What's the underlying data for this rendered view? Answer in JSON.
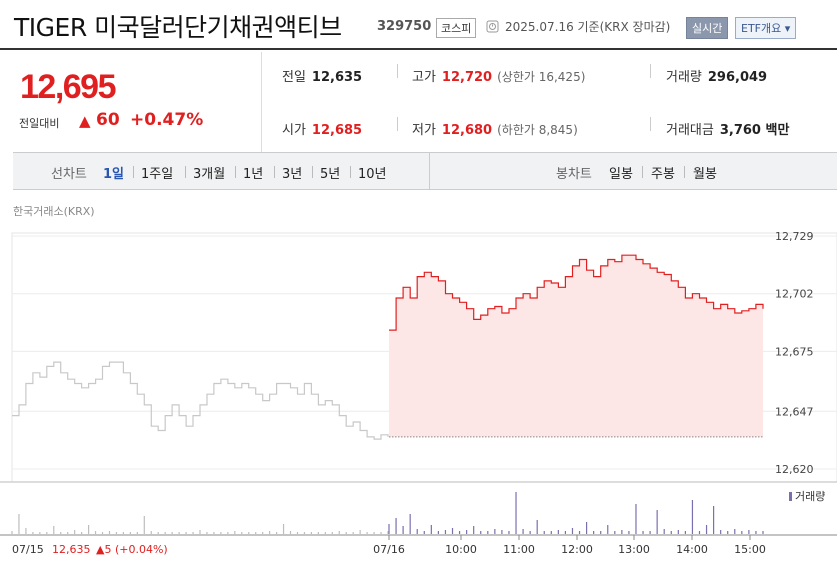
{
  "header": {
    "name": "TIGER 미국달러단기채권액티브",
    "code": "329750",
    "market": "코스피",
    "datetime": "2025.07.16 기준(KRX 장마감)",
    "realtime_button": "실시간",
    "etf_button": "ETF개요 ▾"
  },
  "price": {
    "current": "12,695",
    "change_label": "전일대비",
    "change_arrow": "▲",
    "change": "60",
    "change_pct": "+0.47%"
  },
  "stats": {
    "prev_close_label": "전일",
    "prev_close": "12,635",
    "high_label": "고가",
    "high": "12,720",
    "upper_limit": "(상한가 16,425)",
    "volume_label": "거래량",
    "volume": "296,049",
    "open_label": "시가",
    "open": "12,685",
    "low_label": "저가",
    "low": "12,680",
    "lower_limit": "(하한가 8,845)",
    "value_label": "거래대금",
    "value": "3,760 백만"
  },
  "toolbar": {
    "line_label": "선차트",
    "line_periods": [
      "1일",
      "1주일",
      "3개월",
      "1년",
      "3년",
      "5년",
      "10년"
    ],
    "candle_label": "봉차트",
    "candle_periods": [
      "일봉",
      "주봉",
      "월봉"
    ]
  },
  "source": "한국거래소(KRX)",
  "colors": {
    "up": "#e02020",
    "fill": "#fde6e6",
    "prev": "#c8c8c8",
    "volume": "#7b6fb0"
  },
  "chart_data": {
    "type": "line",
    "y_ticks": [
      "12,729",
      "12,702",
      "12,675",
      "12,647",
      "12,620"
    ],
    "ylim": [
      12620,
      12729
    ],
    "x_ticks": [
      "07/15",
      "07/16",
      "10:00",
      "11:00",
      "12:00",
      "13:00",
      "14:00",
      "15:00"
    ],
    "prev_day_label": "07/15",
    "prev_day_close": "12,635",
    "prev_day_change": "▲5 (+0.04%)",
    "volume_legend": "거래량",
    "series": [
      {
        "day": "07/15",
        "values": [
          12645,
          12650,
          12660,
          12665,
          12663,
          12668,
          12670,
          12665,
          12662,
          12660,
          12658,
          12660,
          12662,
          12668,
          12670,
          12670,
          12665,
          12660,
          12655,
          12650,
          12640,
          12638,
          12645,
          12650,
          12645,
          12640,
          12645,
          12650,
          12655,
          12660,
          12662,
          12660,
          12658,
          12660,
          12658,
          12655,
          12652,
          12655,
          12660,
          12660,
          12658,
          12655,
          12660,
          12655,
          12650,
          12652,
          12650,
          12645,
          12640,
          12642,
          12638,
          12635,
          12634,
          12636,
          12635
        ]
      },
      {
        "day": "07/16",
        "values": [
          12685,
          12700,
          12705,
          12700,
          12710,
          12712,
          12710,
          12708,
          12702,
          12700,
          12698,
          12695,
          12690,
          12692,
          12695,
          12696,
          12693,
          12695,
          12700,
          12702,
          12700,
          12705,
          12708,
          12707,
          12705,
          12710,
          12715,
          12718,
          12713,
          12710,
          12715,
          12718,
          12717,
          12720,
          12720,
          12718,
          12716,
          12714,
          12712,
          12711,
          12708,
          12705,
          12700,
          12702,
          12700,
          12698,
          12695,
          12697,
          12695,
          12693,
          12694,
          12695,
          12697,
          12695
        ]
      }
    ],
    "volume": [
      {
        "day": "07/15",
        "values": [
          3,
          20,
          6,
          2,
          2,
          2,
          8,
          2,
          2,
          4,
          2,
          9,
          3,
          2,
          3,
          2,
          2,
          2,
          2,
          18,
          3,
          2,
          2,
          2,
          2,
          2,
          2,
          4,
          2,
          2,
          2,
          2,
          3,
          2,
          2,
          2,
          2,
          3,
          2,
          10,
          3,
          2,
          2,
          2,
          2,
          2,
          2,
          3,
          2,
          2,
          4,
          2,
          2,
          2,
          3
        ]
      },
      {
        "day": "07/16",
        "values": [
          10,
          16,
          8,
          20,
          5,
          3,
          9,
          3,
          4,
          6,
          3,
          4,
          8,
          3,
          3,
          5,
          4,
          3,
          42,
          5,
          3,
          14,
          3,
          3,
          4,
          3,
          6,
          3,
          12,
          3,
          3,
          9,
          3,
          4,
          3,
          30,
          3,
          3,
          24,
          5,
          3,
          4,
          3,
          34,
          3,
          9,
          28,
          4,
          3,
          5,
          3,
          4,
          3,
          3
        ]
      }
    ]
  }
}
